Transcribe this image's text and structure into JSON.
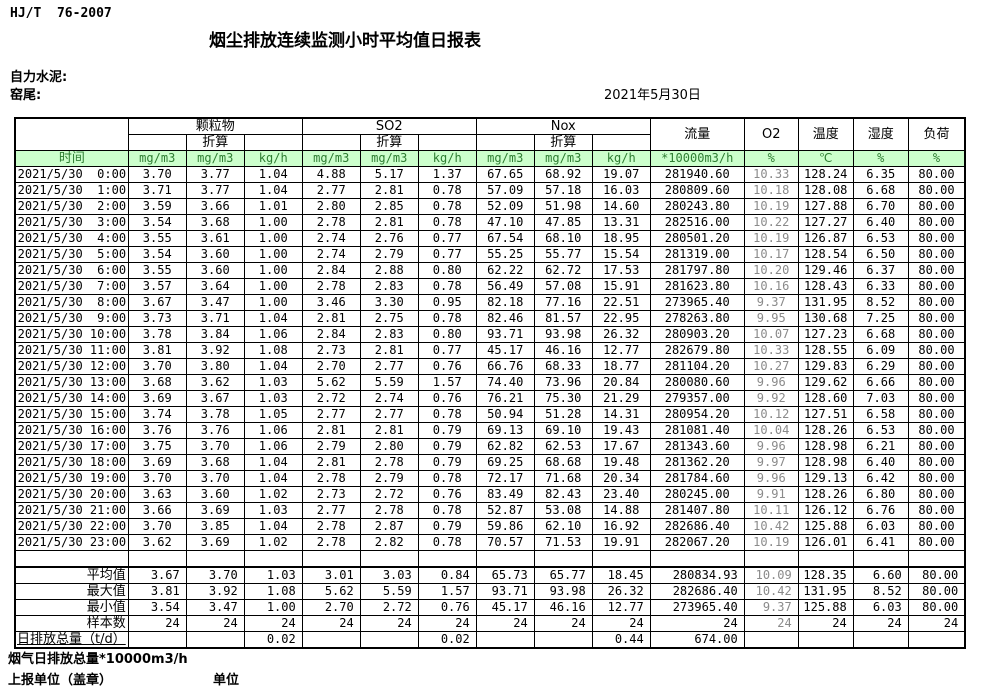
{
  "page": {
    "standard": "HJ/T  76-2007",
    "title": "烟尘排放连续监测小时平均值日报表",
    "company": "自力水泥:",
    "location": "窑尾:",
    "date": "2021年5月30日",
    "footnote": "烟气日排放总量*10000m3/h",
    "report_unit_label": "上报单位（盖章）",
    "unit_label": "单位"
  },
  "table": {
    "time_header": "时间",
    "groups": [
      {
        "label": "颗粒物",
        "sub": "折算"
      },
      {
        "label": "SO2",
        "sub": "折算"
      },
      {
        "label": "Nox",
        "sub": "折算"
      }
    ],
    "single_headers": {
      "flow": "流量",
      "o2": "O2",
      "temp": "温度",
      "humidity": "湿度",
      "load": "负荷"
    },
    "units": [
      "mg/m3",
      "mg/m3",
      "kg/h",
      "mg/m3",
      "mg/m3",
      "kg/h",
      "mg/m3",
      "mg/m3",
      "kg/h",
      "*10000m3/h",
      "%",
      "℃",
      "%",
      "%"
    ],
    "rows": [
      {
        "time": "2021/5/30  0:00",
        "values": [
          "3.70",
          "3.77",
          "1.04",
          "4.88",
          "5.17",
          "1.37",
          "67.65",
          "68.92",
          "19.07",
          "281940.60",
          "10.33",
          "128.24",
          "6.35",
          "80.00"
        ]
      },
      {
        "time": "2021/5/30  1:00",
        "values": [
          "3.71",
          "3.77",
          "1.04",
          "2.77",
          "2.81",
          "0.78",
          "57.09",
          "57.18",
          "16.03",
          "280809.60",
          "10.18",
          "128.08",
          "6.68",
          "80.00"
        ]
      },
      {
        "time": "2021/5/30  2:00",
        "values": [
          "3.59",
          "3.66",
          "1.01",
          "2.80",
          "2.85",
          "0.78",
          "52.09",
          "51.98",
          "14.60",
          "280243.80",
          "10.19",
          "127.88",
          "6.70",
          "80.00"
        ]
      },
      {
        "time": "2021/5/30  3:00",
        "values": [
          "3.54",
          "3.68",
          "1.00",
          "2.78",
          "2.81",
          "0.78",
          "47.10",
          "47.85",
          "13.31",
          "282516.00",
          "10.22",
          "127.27",
          "6.40",
          "80.00"
        ]
      },
      {
        "time": "2021/5/30  4:00",
        "values": [
          "3.55",
          "3.61",
          "1.00",
          "2.74",
          "2.76",
          "0.77",
          "67.54",
          "68.10",
          "18.95",
          "280501.20",
          "10.19",
          "126.87",
          "6.53",
          "80.00"
        ]
      },
      {
        "time": "2021/5/30  5:00",
        "values": [
          "3.54",
          "3.60",
          "1.00",
          "2.74",
          "2.79",
          "0.77",
          "55.25",
          "55.77",
          "15.54",
          "281319.00",
          "10.17",
          "128.54",
          "6.50",
          "80.00"
        ]
      },
      {
        "time": "2021/5/30  6:00",
        "values": [
          "3.55",
          "3.60",
          "1.00",
          "2.84",
          "2.88",
          "0.80",
          "62.22",
          "62.72",
          "17.53",
          "281797.80",
          "10.20",
          "129.46",
          "6.37",
          "80.00"
        ]
      },
      {
        "time": "2021/5/30  7:00",
        "values": [
          "3.57",
          "3.64",
          "1.00",
          "2.78",
          "2.83",
          "0.78",
          "56.49",
          "57.08",
          "15.91",
          "281623.80",
          "10.16",
          "128.43",
          "6.33",
          "80.00"
        ]
      },
      {
        "time": "2021/5/30  8:00",
        "values": [
          "3.67",
          "3.47",
          "1.00",
          "3.46",
          "3.30",
          "0.95",
          "82.18",
          "77.16",
          "22.51",
          "273965.40",
          "9.37",
          "131.95",
          "8.52",
          "80.00"
        ]
      },
      {
        "time": "2021/5/30  9:00",
        "values": [
          "3.73",
          "3.71",
          "1.04",
          "2.81",
          "2.75",
          "0.78",
          "82.46",
          "81.57",
          "22.95",
          "278263.80",
          "9.95",
          "130.68",
          "7.25",
          "80.00"
        ]
      },
      {
        "time": "2021/5/30 10:00",
        "values": [
          "3.78",
          "3.84",
          "1.06",
          "2.84",
          "2.83",
          "0.80",
          "93.71",
          "93.98",
          "26.32",
          "280903.20",
          "10.07",
          "127.23",
          "6.68",
          "80.00"
        ]
      },
      {
        "time": "2021/5/30 11:00",
        "values": [
          "3.81",
          "3.92",
          "1.08",
          "2.73",
          "2.81",
          "0.77",
          "45.17",
          "46.16",
          "12.77",
          "282679.80",
          "10.33",
          "128.55",
          "6.09",
          "80.00"
        ]
      },
      {
        "time": "2021/5/30 12:00",
        "values": [
          "3.70",
          "3.80",
          "1.04",
          "2.70",
          "2.77",
          "0.76",
          "66.76",
          "68.33",
          "18.77",
          "281104.20",
          "10.27",
          "129.83",
          "6.29",
          "80.00"
        ]
      },
      {
        "time": "2021/5/30 13:00",
        "values": [
          "3.68",
          "3.62",
          "1.03",
          "5.62",
          "5.59",
          "1.57",
          "74.40",
          "73.96",
          "20.84",
          "280080.60",
          "9.96",
          "129.62",
          "6.66",
          "80.00"
        ]
      },
      {
        "time": "2021/5/30 14:00",
        "values": [
          "3.69",
          "3.67",
          "1.03",
          "2.72",
          "2.74",
          "0.76",
          "76.21",
          "75.30",
          "21.29",
          "279357.00",
          "9.92",
          "128.60",
          "7.03",
          "80.00"
        ]
      },
      {
        "time": "2021/5/30 15:00",
        "values": [
          "3.74",
          "3.78",
          "1.05",
          "2.77",
          "2.77",
          "0.78",
          "50.94",
          "51.28",
          "14.31",
          "280954.20",
          "10.12",
          "127.51",
          "6.58",
          "80.00"
        ]
      },
      {
        "time": "2021/5/30 16:00",
        "values": [
          "3.76",
          "3.76",
          "1.06",
          "2.81",
          "2.81",
          "0.79",
          "69.13",
          "69.10",
          "19.43",
          "281081.40",
          "10.04",
          "128.26",
          "6.53",
          "80.00"
        ]
      },
      {
        "time": "2021/5/30 17:00",
        "values": [
          "3.75",
          "3.70",
          "1.06",
          "2.79",
          "2.80",
          "0.79",
          "62.82",
          "62.53",
          "17.67",
          "281343.60",
          "9.96",
          "128.98",
          "6.21",
          "80.00"
        ]
      },
      {
        "time": "2021/5/30 18:00",
        "values": [
          "3.69",
          "3.68",
          "1.04",
          "2.81",
          "2.78",
          "0.79",
          "69.25",
          "68.68",
          "19.48",
          "281362.20",
          "9.97",
          "128.98",
          "6.40",
          "80.00"
        ]
      },
      {
        "time": "2021/5/30 19:00",
        "values": [
          "3.70",
          "3.70",
          "1.04",
          "2.78",
          "2.79",
          "0.78",
          "72.17",
          "71.68",
          "20.34",
          "281784.60",
          "9.96",
          "129.13",
          "6.42",
          "80.00"
        ]
      },
      {
        "time": "2021/5/30 20:00",
        "values": [
          "3.63",
          "3.60",
          "1.02",
          "2.73",
          "2.72",
          "0.76",
          "83.49",
          "82.43",
          "23.40",
          "280245.00",
          "9.91",
          "128.26",
          "6.80",
          "80.00"
        ]
      },
      {
        "time": "2021/5/30 21:00",
        "values": [
          "3.66",
          "3.69",
          "1.03",
          "2.77",
          "2.78",
          "0.78",
          "52.87",
          "53.08",
          "14.88",
          "281407.80",
          "10.11",
          "126.12",
          "6.76",
          "80.00"
        ]
      },
      {
        "time": "2021/5/30 22:00",
        "values": [
          "3.70",
          "3.85",
          "1.04",
          "2.78",
          "2.87",
          "0.79",
          "59.86",
          "62.10",
          "16.92",
          "282686.40",
          "10.42",
          "125.88",
          "6.03",
          "80.00"
        ]
      },
      {
        "time": "2021/5/30 23:00",
        "values": [
          "3.62",
          "3.69",
          "1.02",
          "2.78",
          "2.82",
          "0.78",
          "70.57",
          "71.53",
          "19.91",
          "282067.20",
          "10.19",
          "126.01",
          "6.41",
          "80.00"
        ]
      }
    ],
    "summary": [
      {
        "label": "平均值",
        "align": "right",
        "values": [
          "3.67",
          "3.70",
          "1.03",
          "3.01",
          "3.03",
          "0.84",
          "65.73",
          "65.77",
          "18.45",
          "280834.93",
          "10.09",
          "128.35",
          "6.60",
          "80.00"
        ]
      },
      {
        "label": "最大值",
        "align": "right",
        "values": [
          "3.81",
          "3.92",
          "1.08",
          "5.62",
          "5.59",
          "1.57",
          "93.71",
          "93.98",
          "26.32",
          "282686.40",
          "10.42",
          "131.95",
          "8.52",
          "80.00"
        ]
      },
      {
        "label": "最小值",
        "align": "right",
        "values": [
          "3.54",
          "3.47",
          "1.00",
          "2.70",
          "2.72",
          "0.76",
          "45.17",
          "46.16",
          "12.77",
          "273965.40",
          "9.37",
          "125.88",
          "6.03",
          "80.00"
        ]
      },
      {
        "label": "样本数",
        "align": "right",
        "values": [
          "24",
          "24",
          "24",
          "24",
          "24",
          "24",
          "24",
          "24",
          "24",
          "24",
          "24",
          "24",
          "24",
          "24"
        ]
      },
      {
        "label": "日排放总量（t/d）",
        "align": "left",
        "values": [
          "",
          "",
          "0.02",
          "",
          "",
          "0.02",
          "",
          "",
          "0.44",
          "674.00",
          "",
          "",
          "",
          ""
        ]
      }
    ]
  }
}
